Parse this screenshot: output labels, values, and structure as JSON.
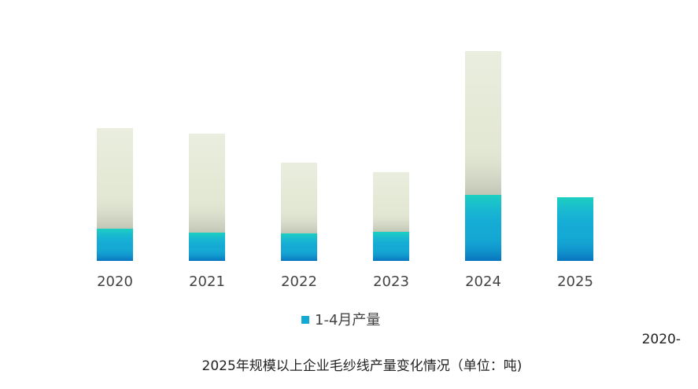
{
  "chart_data": {
    "type": "stacked_bar",
    "categories": [
      "2020",
      "2021",
      "2022",
      "2023",
      "2024",
      "2025"
    ],
    "series": [
      {
        "name": "1-4月产量",
        "color": "#14a9d4",
        "values": [
          41,
          36,
          35,
          37,
          84,
          81
        ]
      },
      {
        "color": "#e3e8d4",
        "values": [
          128,
          126,
          90,
          76,
          183,
          null
        ]
      }
    ],
    "ylim": [
      0,
      280
    ],
    "legend": "bottom",
    "caption": [
      "2020-",
      "2025年规模以上企业毛纱线产量变化情况（单位：吨)"
    ]
  }
}
